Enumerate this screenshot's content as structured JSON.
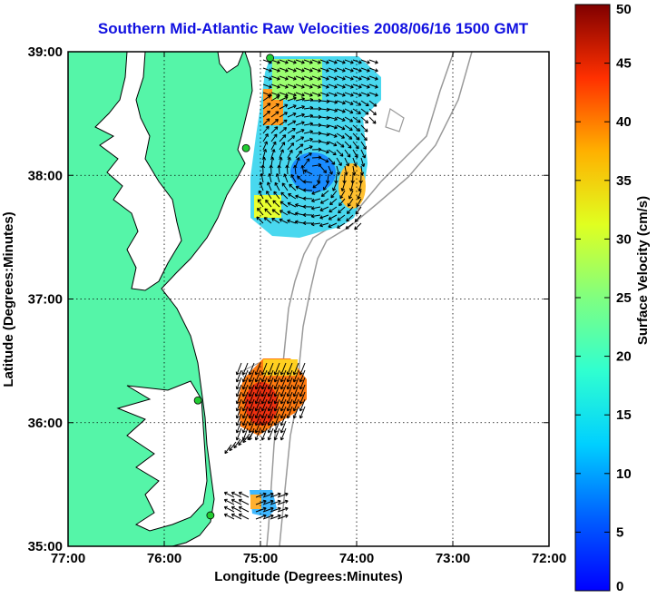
{
  "title": "Southern Mid-Atlantic Raw Velocities 2008/06/16 1500 GMT",
  "axes": {
    "xlabel": "Longitude (Degrees:Minutes)",
    "ylabel": "Latitude (Degrees:Minutes)",
    "xticks": [
      "77:00",
      "76:00",
      "75:00",
      "74:00",
      "73:00",
      "72:00"
    ],
    "yticks": [
      "39:00",
      "38:00",
      "37:00",
      "36:00",
      "35:00"
    ],
    "xlim": [
      -77,
      -72
    ],
    "ylim": [
      35,
      39
    ],
    "grid": "dotted"
  },
  "colorbar": {
    "label": "Surface Velocity (cm/s)",
    "ticks": [
      "0",
      "5",
      "10",
      "15",
      "20",
      "25",
      "30",
      "35",
      "40",
      "45",
      "50"
    ],
    "range": [
      0,
      50
    ],
    "colormap": "jet"
  },
  "colors": {
    "land": "#55f5a8",
    "water": "#ffffff",
    "coastline": "#000000",
    "bathymetry": "#9a9a9a",
    "title": "#1010e0",
    "station": "#22cc33"
  },
  "chart_data": {
    "type": "heatmap",
    "regions": [
      {
        "name": "",
        "lon_range": [
          -75.1,
          -74.2
        ],
        "lat_range": [
          37.6,
          38.95
        ],
        "dominant_speed_cm_s": [
          5,
          15
        ],
        "max_speed_cm_s": 35
      },
      {
        "name": "",
        "lon_range": [
          -75.2,
          -74.6
        ],
        "lat_range": [
          35.9,
          36.5
        ],
        "dominant_speed_cm_s": [
          25,
          40
        ],
        "max_speed_cm_s": 40
      },
      {
        "name": "",
        "lon_range": [
          -75.1,
          -74.8
        ],
        "lat_range": [
          35.2,
          35.45
        ],
        "dominant_speed_cm_s": [
          8,
          30
        ],
        "max_speed_cm_s": 30
      }
    ],
    "stations": [
      {
        "lon": -74.9,
        "lat": 38.95
      },
      {
        "lon": -75.15,
        "lat": 38.22
      },
      {
        "lon": -75.65,
        "lat": 36.18
      },
      {
        "lon": -75.52,
        "lat": 35.25
      }
    ]
  }
}
